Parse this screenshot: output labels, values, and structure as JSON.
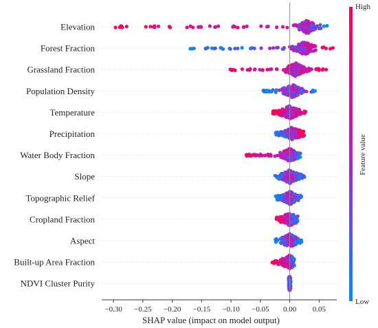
{
  "chart_data": {
    "type": "scatter",
    "subtype": "shap-beeswarm",
    "features": [
      "Elevation",
      "Forest Fraction",
      "Grassland Fraction",
      "Population Density",
      "Temperature",
      "Precipitation",
      "Water Body Fraction",
      "Slope",
      "Topographic Relief",
      "Cropland Fraction",
      "Aspect",
      "Built-up Area Fraction",
      "NDVI Cluster Purity"
    ],
    "feature_ranges": [
      {
        "feature": "Elevation",
        "min": -0.3,
        "max": 0.065,
        "peak": 0.03,
        "low_side": "high",
        "high_side": "low"
      },
      {
        "feature": "Forest Fraction",
        "min": -0.17,
        "max": 0.075,
        "peak": 0.025,
        "low_side": "low",
        "high_side": "high"
      },
      {
        "feature": "Grassland Fraction",
        "min": -0.105,
        "max": 0.075,
        "peak": 0.01,
        "low_side": "high",
        "high_side": "high"
      },
      {
        "feature": "Population Density",
        "min": -0.045,
        "max": 0.045,
        "peak": 0.005,
        "low_side": "low",
        "high_side": "low"
      },
      {
        "feature": "Temperature",
        "min": -0.03,
        "max": 0.03,
        "peak": 0.0,
        "low_side": "high",
        "high_side": "high"
      },
      {
        "feature": "Precipitation",
        "min": -0.025,
        "max": 0.025,
        "peak": 0.005,
        "low_side": "low",
        "high_side": "high"
      },
      {
        "feature": "Water Body Fraction",
        "min": -0.075,
        "max": 0.02,
        "peak": 0.0,
        "low_side": "high",
        "high_side": "low"
      },
      {
        "feature": "Slope",
        "min": -0.025,
        "max": 0.025,
        "peak": 0.0,
        "low_side": "low",
        "high_side": "low"
      },
      {
        "feature": "Topographic Relief",
        "min": -0.025,
        "max": 0.02,
        "peak": 0.0,
        "low_side": "low",
        "high_side": "low"
      },
      {
        "feature": "Cropland Fraction",
        "min": -0.025,
        "max": 0.015,
        "peak": 0.0,
        "low_side": "high",
        "high_side": "low"
      },
      {
        "feature": "Aspect",
        "min": -0.025,
        "max": 0.02,
        "peak": 0.0,
        "low_side": "low",
        "high_side": "low"
      },
      {
        "feature": "Built-up Area Fraction",
        "min": -0.03,
        "max": 0.01,
        "peak": 0.0,
        "low_side": "high",
        "high_side": "low"
      },
      {
        "feature": "NDVI Cluster Purity",
        "min": -0.002,
        "max": 0.002,
        "peak": 0.0,
        "low_side": "low",
        "high_side": "low"
      }
    ],
    "xlabel": "SHAP value (impact on model output)",
    "xlim": [
      -0.32,
      0.08
    ],
    "xticks": [
      -0.3,
      -0.25,
      -0.2,
      -0.15,
      -0.1,
      -0.05,
      0.0,
      0.05
    ],
    "xtick_labels": [
      "−0.30",
      "−0.25",
      "−0.20",
      "−0.15",
      "−0.10",
      "−0.05",
      "0.00",
      "0.05"
    ],
    "zero_line": 0.0,
    "colorbar": {
      "label": "Feature value",
      "high_label": "High",
      "low_label": "Low",
      "low_color": "#008bfb",
      "high_color": "#ff0052"
    },
    "grid": false
  }
}
